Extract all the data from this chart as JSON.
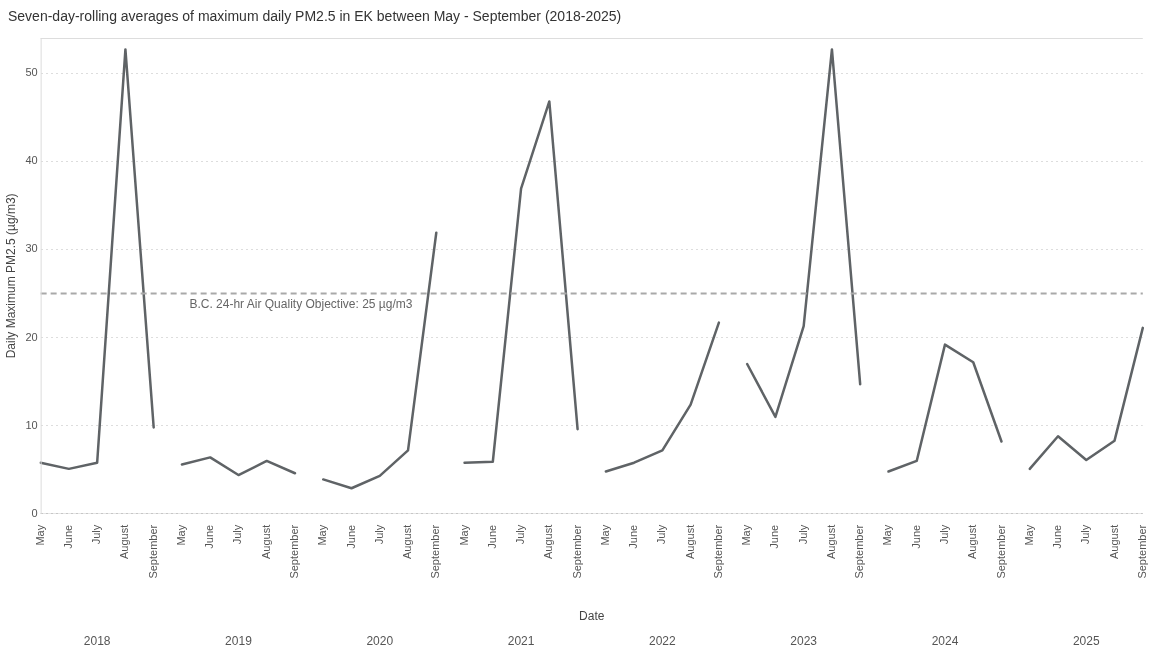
{
  "chart_data": {
    "type": "line",
    "title": "Seven-day-rolling averages of maximum daily PM2.5 in EK between May - September (2018-2025)",
    "xlabel": "Date",
    "ylabel": "Daily Maximum PM2.5 (µg/m3)",
    "categories": [
      "May",
      "June",
      "July",
      "August",
      "September",
      "May",
      "June",
      "July",
      "August",
      "September",
      "May",
      "June",
      "July",
      "August",
      "September",
      "May",
      "June",
      "July",
      "August",
      "September",
      "May",
      "June",
      "July",
      "August",
      "September",
      "May",
      "June",
      "July",
      "August",
      "September",
      "May",
      "June",
      "July",
      "August",
      "September",
      "May",
      "June",
      "July",
      "August",
      "September"
    ],
    "series": [
      {
        "color": "#5f6366",
        "values": [
          5.8,
          5.1,
          5.8,
          52.7,
          9.8,
          null,
          null,
          null,
          null,
          null,
          null,
          null,
          null,
          null,
          null,
          null,
          null,
          null,
          null,
          null,
          null,
          null,
          null,
          null,
          null,
          null,
          null,
          null,
          null,
          null,
          null,
          null,
          null,
          null,
          null,
          null,
          null,
          null,
          null,
          null
        ]
      },
      {
        "color": "#5f6366",
        "values": [
          null,
          null,
          null,
          null,
          null,
          5.6,
          6.4,
          4.4,
          6.0,
          4.6,
          null,
          null,
          null,
          null,
          null,
          null,
          null,
          null,
          null,
          null,
          null,
          null,
          null,
          null,
          null,
          null,
          null,
          null,
          null,
          null,
          null,
          null,
          null,
          null,
          null,
          null,
          null,
          null,
          null,
          null
        ]
      },
      {
        "color": "#5f6366",
        "values": [
          null,
          null,
          null,
          null,
          null,
          null,
          null,
          null,
          null,
          null,
          3.9,
          2.9,
          4.3,
          7.2,
          31.9,
          null,
          null,
          null,
          null,
          null,
          null,
          null,
          null,
          null,
          null,
          null,
          null,
          null,
          null,
          null,
          null,
          null,
          null,
          null,
          null,
          null,
          null,
          null,
          null,
          null
        ]
      },
      {
        "color": "#5f6366",
        "values": [
          null,
          null,
          null,
          null,
          null,
          null,
          null,
          null,
          null,
          null,
          null,
          null,
          null,
          null,
          null,
          5.8,
          5.9,
          36.9,
          46.8,
          9.6,
          null,
          null,
          null,
          null,
          null,
          null,
          null,
          null,
          null,
          null,
          null,
          null,
          null,
          null,
          null,
          null,
          null,
          null,
          null,
          null
        ]
      },
      {
        "color": "#5f6366",
        "values": [
          null,
          null,
          null,
          null,
          null,
          null,
          null,
          null,
          null,
          null,
          null,
          null,
          null,
          null,
          null,
          null,
          null,
          null,
          null,
          null,
          4.8,
          5.8,
          7.2,
          12.4,
          21.7,
          null,
          null,
          null,
          null,
          null,
          null,
          null,
          null,
          null,
          null,
          null,
          null,
          null,
          null,
          null
        ]
      },
      {
        "color": "#5f6366",
        "values": [
          null,
          null,
          null,
          null,
          null,
          null,
          null,
          null,
          null,
          null,
          null,
          null,
          null,
          null,
          null,
          null,
          null,
          null,
          null,
          null,
          null,
          null,
          null,
          null,
          null,
          17.0,
          11.0,
          21.3,
          52.7,
          14.7,
          null,
          null,
          null,
          null,
          null,
          null,
          null,
          null,
          null,
          null
        ]
      },
      {
        "color": "#5f6366",
        "values": [
          null,
          null,
          null,
          null,
          null,
          null,
          null,
          null,
          null,
          null,
          null,
          null,
          null,
          null,
          null,
          null,
          null,
          null,
          null,
          null,
          null,
          null,
          null,
          null,
          null,
          null,
          null,
          null,
          null,
          null,
          4.8,
          6.0,
          19.2,
          17.2,
          8.2,
          null,
          null,
          null,
          null,
          null
        ]
      },
      {
        "color": "#5f6366",
        "values": [
          null,
          null,
          null,
          null,
          null,
          null,
          null,
          null,
          null,
          null,
          null,
          null,
          null,
          null,
          null,
          null,
          null,
          null,
          null,
          null,
          null,
          null,
          null,
          null,
          null,
          null,
          null,
          null,
          null,
          null,
          null,
          null,
          null,
          null,
          null,
          5.1,
          8.8,
          6.1,
          8.3,
          21.1
        ]
      }
    ],
    "annotations": [
      "2018",
      "2019",
      "2020",
      "2021",
      "2022",
      "2023",
      "2024",
      "2025"
    ],
    "ref_lines": [
      {
        "axis": "y",
        "value": 25,
        "label": "B.C. 24-hr Air Quality Objective: 25 µg/m3",
        "color": "#a9a9a9",
        "line_style": "dashed"
      }
    ],
    "ylim": [
      0,
      54
    ],
    "yticks": [
      0,
      10,
      20,
      30,
      40,
      50
    ],
    "grid": "y",
    "legend": false,
    "marker": "none",
    "line_style": "solid"
  }
}
